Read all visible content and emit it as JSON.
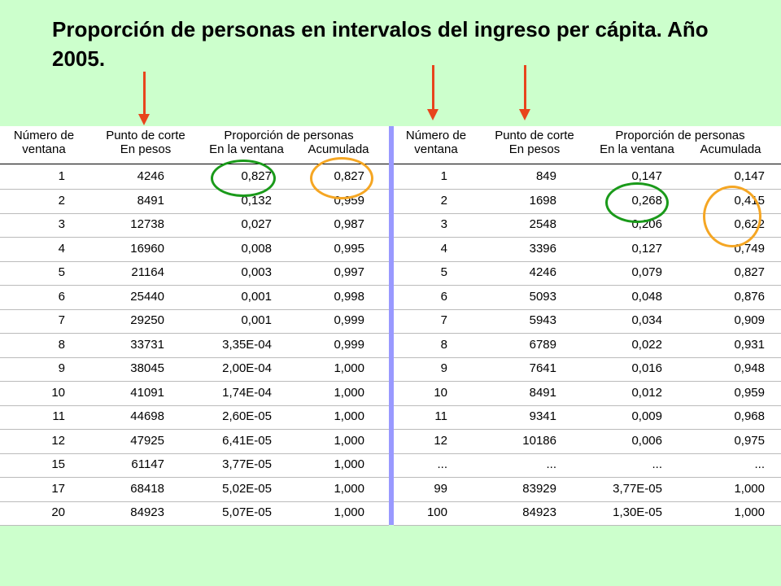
{
  "title": "Proporción de personas en intervalos del ingreso per cápita. Año 2005.",
  "headers": {
    "window_line1": "Número de",
    "window_line2": "ventana",
    "cut_line1": "Punto de corte",
    "cut_line2": "En pesos",
    "prop_line1": "Proporción de personas",
    "in_window": "En la ventana",
    "cumulative": "Acumulada"
  },
  "left_table": [
    [
      "1",
      "4246",
      "0,827",
      "0,827"
    ],
    [
      "2",
      "8491",
      "0,132",
      "0,959"
    ],
    [
      "3",
      "12738",
      "0,027",
      "0,987"
    ],
    [
      "4",
      "16960",
      "0,008",
      "0,995"
    ],
    [
      "5",
      "21164",
      "0,003",
      "0,997"
    ],
    [
      "6",
      "25440",
      "0,001",
      "0,998"
    ],
    [
      "7",
      "29250",
      "0,001",
      "0,999"
    ],
    [
      "8",
      "33731",
      "3,35E-04",
      "0,999"
    ],
    [
      "9",
      "38045",
      "2,00E-04",
      "1,000"
    ],
    [
      "10",
      "41091",
      "1,74E-04",
      "1,000"
    ],
    [
      "11",
      "44698",
      "2,60E-05",
      "1,000"
    ],
    [
      "12",
      "47925",
      "6,41E-05",
      "1,000"
    ],
    [
      "15",
      "61147",
      "3,77E-05",
      "1,000"
    ],
    [
      "17",
      "68418",
      "5,02E-05",
      "1,000"
    ],
    [
      "20",
      "84923",
      "5,07E-05",
      "1,000"
    ]
  ],
  "right_table": [
    [
      "1",
      "849",
      "0,147",
      "0,147"
    ],
    [
      "2",
      "1698",
      "0,268",
      "0,415"
    ],
    [
      "3",
      "2548",
      "0,206",
      "0,622"
    ],
    [
      "4",
      "3396",
      "0,127",
      "0,749"
    ],
    [
      "5",
      "4246",
      "0,079",
      "0,827"
    ],
    [
      "6",
      "5093",
      "0,048",
      "0,876"
    ],
    [
      "7",
      "5943",
      "0,034",
      "0,909"
    ],
    [
      "8",
      "6789",
      "0,022",
      "0,931"
    ],
    [
      "9",
      "7641",
      "0,016",
      "0,948"
    ],
    [
      "10",
      "8491",
      "0,012",
      "0,959"
    ],
    [
      "11",
      "9341",
      "0,009",
      "0,968"
    ],
    [
      "12",
      "10186",
      "0,006",
      "0,975"
    ],
    [
      "...",
      "...",
      "...",
      "..."
    ],
    [
      "99",
      "83929",
      "3,77E-05",
      "1,000"
    ],
    [
      "100",
      "84923",
      "1,30E-05",
      "1,000"
    ]
  ],
  "colors": {
    "background": "#ccffcc",
    "divider": "#9999ff",
    "arrow": "#e8441c",
    "circle_green": "#1a9a1a",
    "circle_orange": "#f5a623"
  }
}
